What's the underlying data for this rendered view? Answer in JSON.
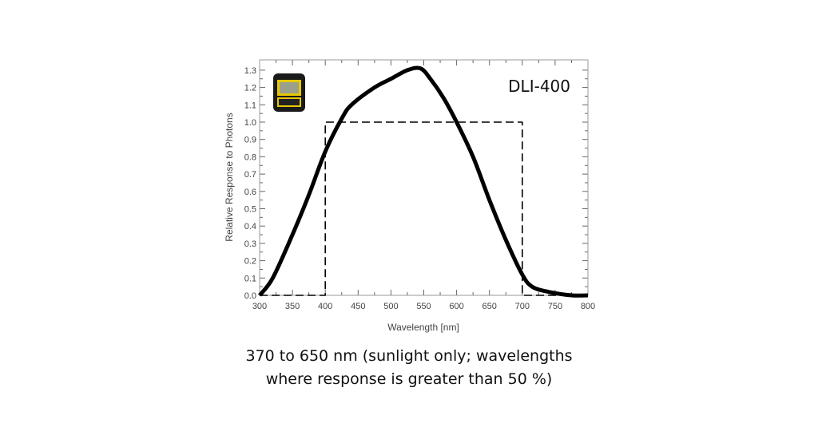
{
  "chart_data": {
    "type": "line",
    "title": "",
    "xlabel": "Wavelength [nm]",
    "ylabel": "Relative Response to Photons",
    "xlim": [
      300,
      800
    ],
    "ylim": [
      0,
      1.3
    ],
    "xticks": [
      300,
      350,
      400,
      450,
      500,
      550,
      600,
      650,
      700,
      750,
      800
    ],
    "yticks": [
      "0.0",
      "0.1",
      "0.2",
      "0.3",
      "0.4",
      "0.5",
      "0.6",
      "0.7",
      "0.8",
      "0.9",
      "1.0",
      "1.1",
      "1.2",
      "1.3"
    ],
    "grid": false,
    "annotation": "DLI-400",
    "series": [
      {
        "style": "solid-thick",
        "color": "#000000",
        "x": [
          300,
          320,
          350,
          375,
          400,
          425,
          440,
          475,
          500,
          525,
          545,
          560,
          580,
          600,
          625,
          650,
          675,
          700,
          715,
          740,
          775,
          800
        ],
        "y": [
          0,
          0.1,
          0.35,
          0.58,
          0.83,
          1.02,
          1.1,
          1.2,
          1.25,
          1.3,
          1.31,
          1.25,
          1.14,
          1.0,
          0.8,
          0.55,
          0.32,
          0.12,
          0.05,
          0.02,
          0,
          0
        ]
      },
      {
        "style": "dashed",
        "color": "#000000",
        "x": [
          300,
          400,
          400,
          700,
          700,
          800
        ],
        "y": [
          0,
          0,
          1.0,
          1.0,
          0,
          0
        ]
      }
    ]
  },
  "caption": {
    "line1": "370 to 650 nm (sunlight only; wavelengths",
    "line2": "where response is greater than 50 %)"
  },
  "device_icon": "light-meter-device-icon"
}
